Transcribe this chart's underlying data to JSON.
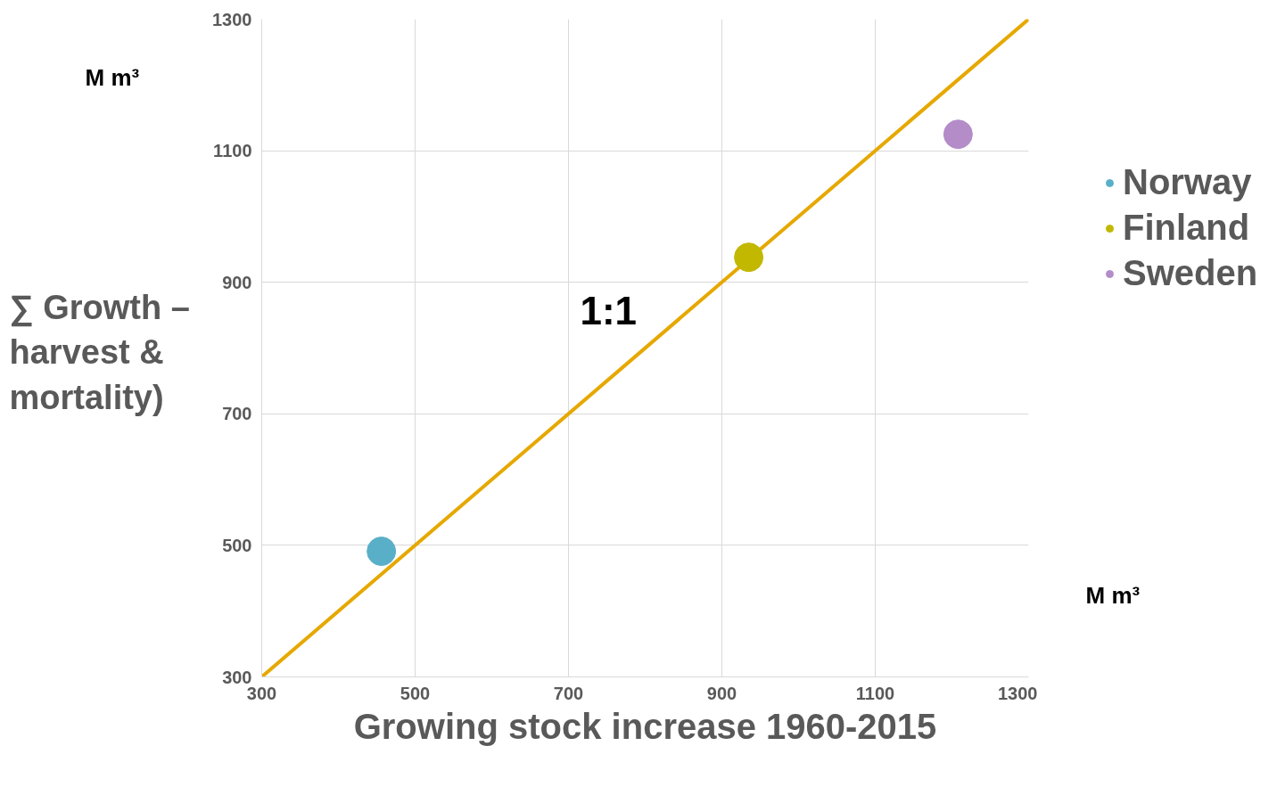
{
  "chart_data": {
    "type": "scatter",
    "xlabel": "Growing stock increase 1960-2015",
    "ylabel": "∑ Growth – harvest & mortality)",
    "xlim": [
      300,
      1300
    ],
    "ylim": [
      300,
      1300
    ],
    "xticks": [
      300,
      500,
      700,
      900,
      1100,
      1300
    ],
    "yticks": [
      300,
      500,
      700,
      900,
      1100,
      1300
    ],
    "grid": true,
    "legend": "right",
    "marker": "circle",
    "series": [
      {
        "type": "line",
        "marker": "none",
        "color": "#e6a800",
        "x": [
          300,
          1300
        ],
        "values": [
          300,
          1300
        ]
      },
      {
        "name": "Norway",
        "color": "#5aafc8",
        "x": [
          456
        ],
        "values": [
          491
        ]
      },
      {
        "name": "Finland",
        "color": "#c2b800",
        "x": [
          935
        ],
        "values": [
          938
        ]
      },
      {
        "name": "Sweden",
        "color": "#b48cc8",
        "x": [
          1208
        ],
        "values": [
          1125
        ]
      }
    ],
    "annotations": [
      "M m³",
      "1:1",
      "M m³"
    ]
  }
}
